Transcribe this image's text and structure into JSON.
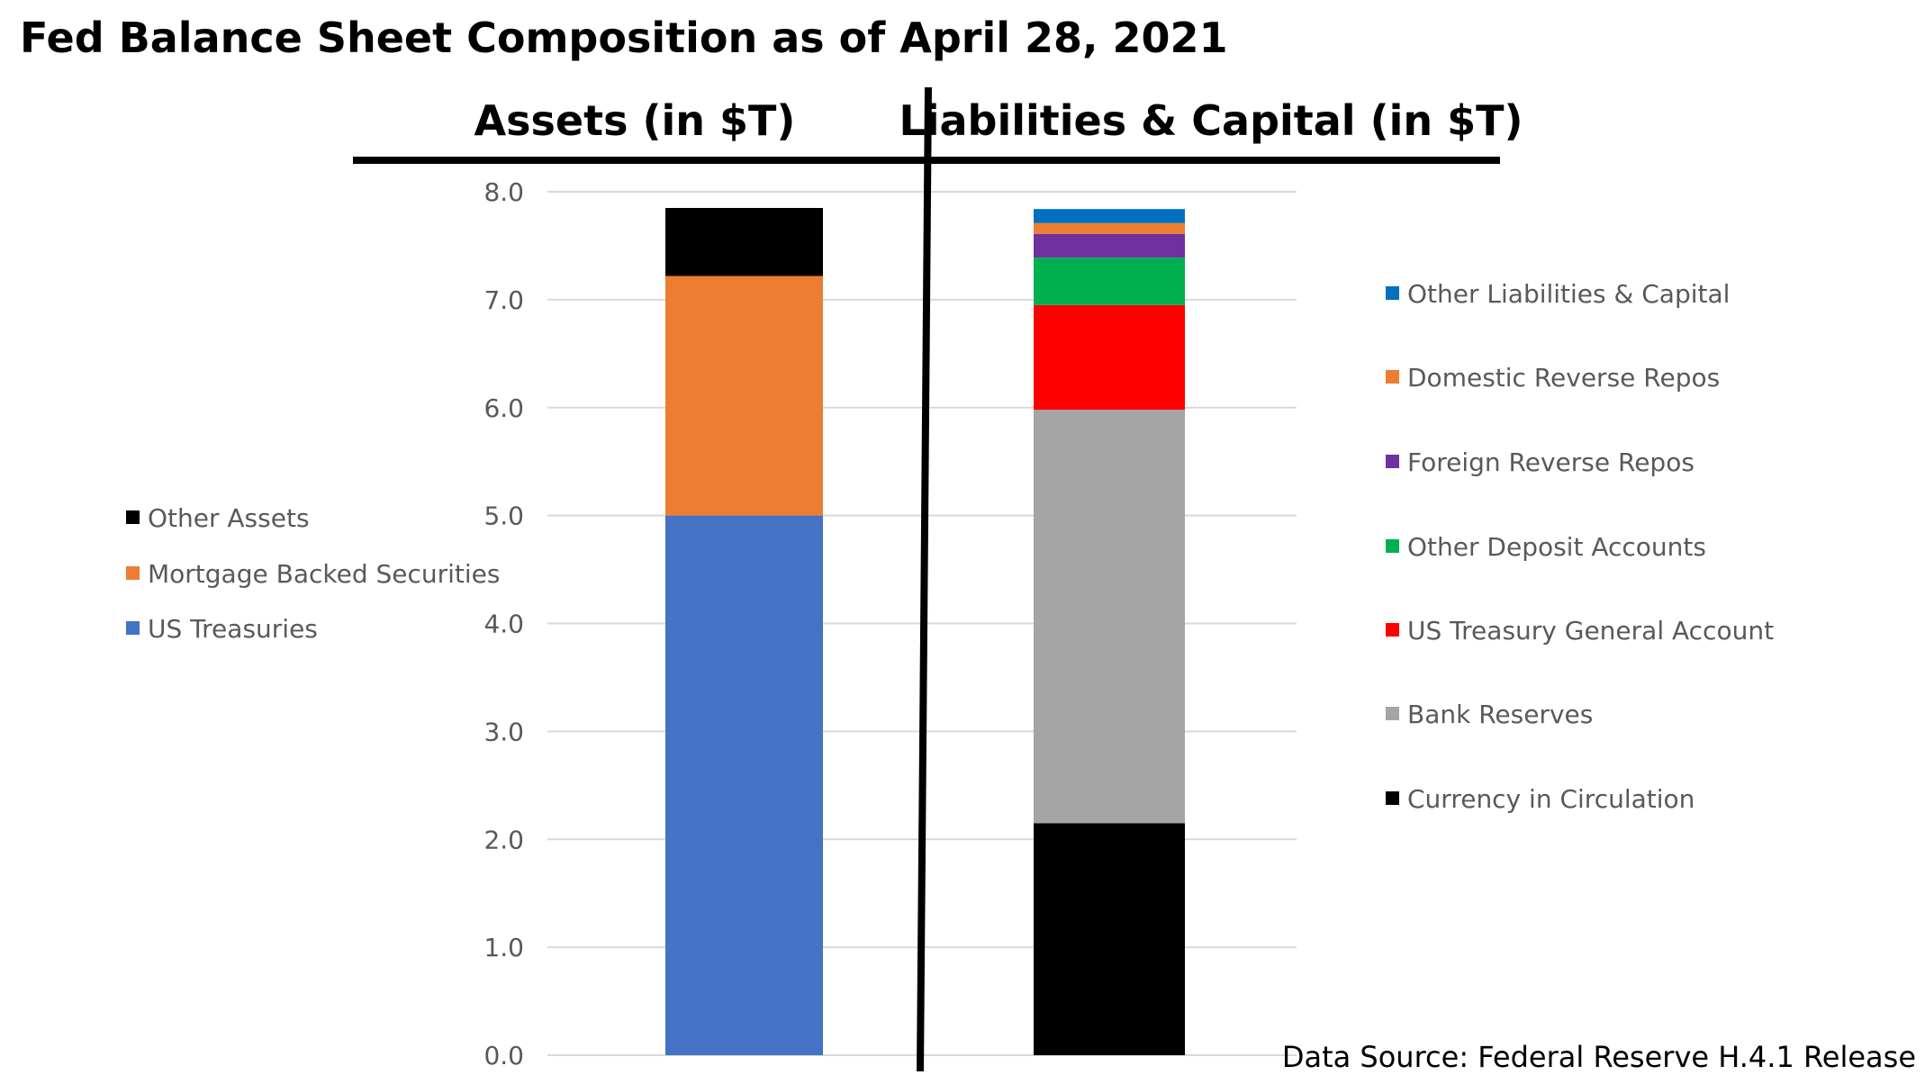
{
  "chart_data": {
    "type": "bar",
    "stacked": true,
    "title": "Fed Balance Sheet Composition as of April 28, 2021",
    "source": "Data Source: Federal Reserve H.4.1 Release",
    "ylim": [
      0,
      8
    ],
    "yticks": [
      "0.0",
      "1.0",
      "2.0",
      "3.0",
      "4.0",
      "5.0",
      "6.0",
      "7.0",
      "8.0"
    ],
    "grid": true,
    "bars": [
      {
        "header": "Assets (in $T)",
        "legend_position": "left",
        "segments": [
          {
            "name": "US Treasuries",
            "value": 5.0,
            "color": "#4472C4"
          },
          {
            "name": "Mortgage Backed Securities",
            "value": 2.22,
            "color": "#ED7D31"
          },
          {
            "name": "Other Assets",
            "value": 0.63,
            "color": "#000000"
          }
        ]
      },
      {
        "header": "Liabilities & Capital (in $T)",
        "legend_position": "right",
        "segments": [
          {
            "name": "Currency in Circulation",
            "value": 2.15,
            "color": "#000000"
          },
          {
            "name": "Bank Reserves",
            "value": 3.83,
            "color": "#A5A5A5"
          },
          {
            "name": "US Treasury General Account",
            "value": 0.97,
            "color": "#FF0000"
          },
          {
            "name": "Other Deposit Accounts",
            "value": 0.44,
            "color": "#00B050"
          },
          {
            "name": "Foreign Reverse Repos",
            "value": 0.22,
            "color": "#7030A0"
          },
          {
            "name": "Domestic Reverse Repos",
            "value": 0.1,
            "color": "#ED7D31"
          },
          {
            "name": "Other Liabilities & Capital",
            "value": 0.13,
            "color": "#0070C0"
          }
        ]
      }
    ]
  }
}
